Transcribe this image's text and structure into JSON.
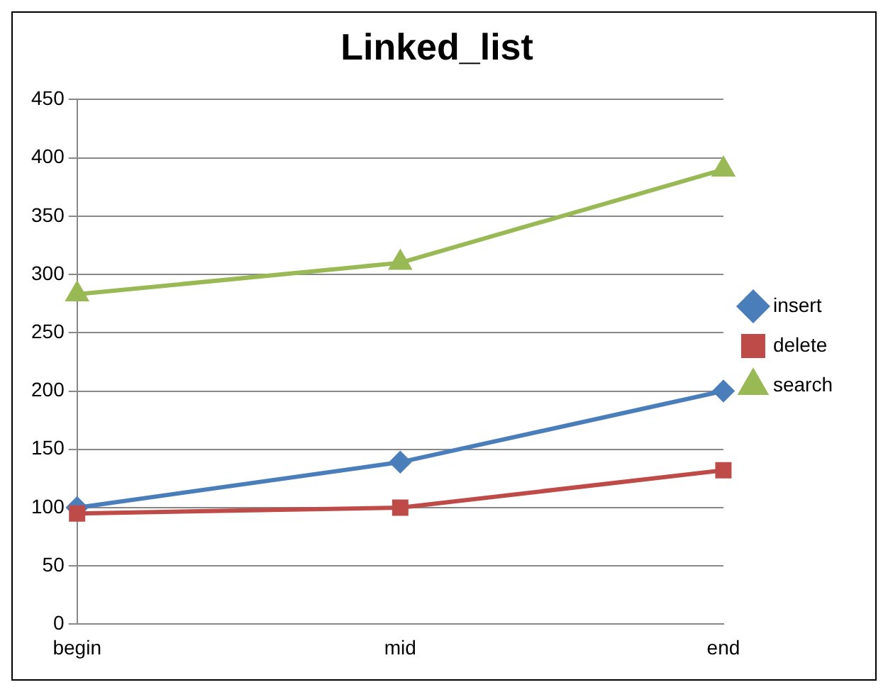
{
  "chart_data": {
    "type": "line",
    "title": "Linked_list",
    "categories": [
      "begin",
      "mid",
      "end"
    ],
    "series": [
      {
        "name": "insert",
        "color": "#4a7ebb",
        "values": [
          100,
          139,
          200
        ],
        "marker": "diamond"
      },
      {
        "name": "delete",
        "color": "#be4b48",
        "values": [
          95,
          100,
          132
        ],
        "marker": "square"
      },
      {
        "name": "search",
        "color": "#98b954",
        "values": [
          283,
          310,
          390
        ],
        "marker": "triangle"
      }
    ],
    "ylim": [
      0,
      450
    ],
    "yticks": [
      0,
      50,
      100,
      150,
      200,
      250,
      300,
      350,
      400,
      450
    ],
    "grid": "y",
    "legend": "right",
    "line_style": "solid"
  }
}
